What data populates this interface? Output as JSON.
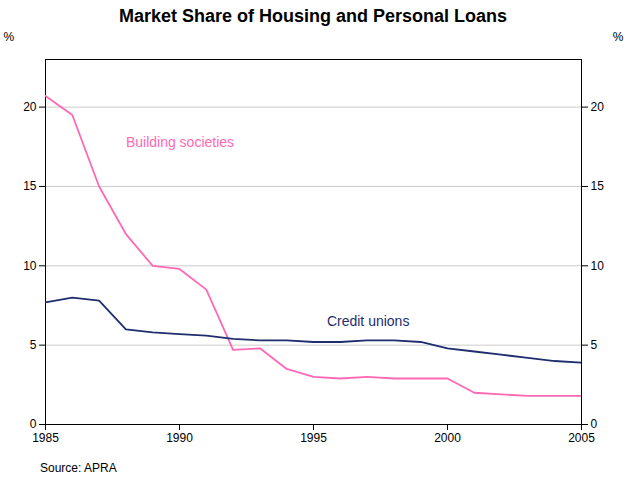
{
  "chart_data": {
    "type": "line",
    "title": "Market Share of Housing and Personal Loans",
    "source": "Source: APRA",
    "ylabel": "%",
    "y2label": "%",
    "x": [
      1985,
      1986,
      1987,
      1988,
      1989,
      1990,
      1991,
      1992,
      1993,
      1994,
      1995,
      1996,
      1997,
      1998,
      1999,
      2000,
      2001,
      2002,
      2003,
      2004,
      2005
    ],
    "series": [
      {
        "name": "Building societies",
        "color": "#FF69B4",
        "values": [
          20.7,
          19.5,
          15.0,
          12.0,
          10.0,
          9.8,
          8.5,
          4.7,
          4.8,
          3.5,
          3.0,
          2.9,
          3.0,
          2.9,
          2.9,
          2.9,
          2.0,
          1.9,
          1.8,
          1.8,
          1.8
        ]
      },
      {
        "name": "Credit unions",
        "color": "#1f2d6e",
        "values": [
          7.7,
          8.0,
          7.8,
          6.0,
          5.8,
          5.7,
          5.6,
          5.4,
          5.3,
          5.3,
          5.2,
          5.2,
          5.3,
          5.3,
          5.2,
          4.8,
          4.6,
          4.4,
          4.2,
          4.0,
          3.9
        ]
      }
    ],
    "annotations": [
      {
        "text": "Building societies",
        "x": 1988.0,
        "y": 17.5,
        "color": "#FF69B4"
      },
      {
        "text": "Credit unions",
        "x": 1995.5,
        "y": 6.2,
        "color": "#1f2d6e"
      }
    ],
    "xlim": [
      1985,
      2005
    ],
    "xticks": [
      1985,
      1990,
      1995,
      2000,
      2005
    ],
    "ylim": [
      0,
      23
    ],
    "yticks": [
      0,
      5,
      10,
      15,
      20
    ],
    "y2lim": [
      0,
      23
    ],
    "y2ticks": [
      0,
      5,
      10,
      15,
      20
    ],
    "grid": true
  }
}
